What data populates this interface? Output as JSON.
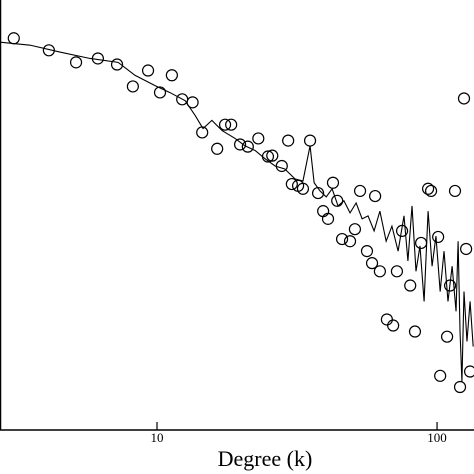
{
  "chart_data": {
    "type": "scatter",
    "xlabel": "Degree (k)",
    "xscale": "log",
    "xlim": [
      2.75,
      135.5
    ],
    "xticks": [
      10,
      100
    ],
    "ylim": [
      0,
      100
    ],
    "series": [
      {
        "style": "markers",
        "color": "#000000",
        "x": [
          3.08,
          4.11,
          5.14,
          6.15,
          7.2,
          8.2,
          9.29,
          10.25,
          11.3,
          12.3,
          13.4,
          14.5,
          16.4,
          17.5,
          18.4,
          19.8,
          21.1,
          23.0,
          24.9,
          25.8,
          27.9,
          29.4,
          30.3,
          31.9,
          33.2,
          35.2,
          37.6,
          39.2,
          40.8,
          42.5,
          44.0,
          45.8,
          48.9,
          50.9,
          53.1,
          56.2,
          58.6,
          60.1,
          62.5,
          66.2,
          69.7,
          71.9,
          75.0,
          80.2,
          83.4,
          87.7,
          92.9,
          95.2,
          100.9,
          102.6,
          108.6,
          111.3,
          115.9,
          120.8,
          124.8,
          127.0,
          131.2
        ],
        "values": [
          91.1,
          88.3,
          85.5,
          86.4,
          85.0,
          79.9,
          83.6,
          78.5,
          82.5,
          76.9,
          76.2,
          69.2,
          65.4,
          71.0,
          71.0,
          66.4,
          65.9,
          67.8,
          63.6,
          63.8,
          61.4,
          67.3,
          57.2,
          56.8,
          56.1,
          67.3,
          55.1,
          50.9,
          49.1,
          57.5,
          53.3,
          44.4,
          43.9,
          46.7,
          55.6,
          41.6,
          38.8,
          54.4,
          36.9,
          25.7,
          24.3,
          36.9,
          46.3,
          33.6,
          22.9,
          43.5,
          56.1,
          55.6,
          44.9,
          12.6,
          21.7,
          33.6,
          55.6,
          10.0,
          77.1,
          42.1,
          13.6
        ]
      },
      {
        "style": "line",
        "color": "#000000",
        "x": [
          2.75,
          3.52,
          4.5,
          5.77,
          7.26,
          8.34,
          9.84,
          11.1,
          12.6,
          13.7,
          14.6,
          15.7,
          17.1,
          19.0,
          20.6,
          22.4,
          24.3,
          26.4,
          28.6,
          31.1,
          33.2,
          35.2,
          36.4,
          38.2,
          40.2,
          42.2,
          44.3,
          46.5,
          48.9,
          51.4,
          54.0,
          56.7,
          59.6,
          62.5,
          65.8,
          69.0,
          72.6,
          76.2,
          78.7,
          81.4,
          84.1,
          86.9,
          89.9,
          92.9,
          96.0,
          99.1,
          102.6,
          105.9,
          109.4,
          113.2,
          116.9,
          118.9,
          120.8,
          122.7,
          124.8,
          127.9,
          131.2,
          134.6
        ],
        "values": [
          90.2,
          89.5,
          87.9,
          86.4,
          85.5,
          82.5,
          80.1,
          78.5,
          76.6,
          73.1,
          70.1,
          72.0,
          69.6,
          67.8,
          66.1,
          65.0,
          63.1,
          61.4,
          60.7,
          58.4,
          57.9,
          66.1,
          57.5,
          55.6,
          54.2,
          56.1,
          52.1,
          53.3,
          50.5,
          52.8,
          49.1,
          49.8,
          46.3,
          50.9,
          43.9,
          47.4,
          41.6,
          49.8,
          39.3,
          52.1,
          36.9,
          42.8,
          29.9,
          50.9,
          38.1,
          45.1,
          32.2,
          41.6,
          29.9,
          38.1,
          27.6,
          43.9,
          22.9,
          11.2,
          32.2,
          20.6,
          29.9,
          19.4
        ]
      }
    ]
  }
}
